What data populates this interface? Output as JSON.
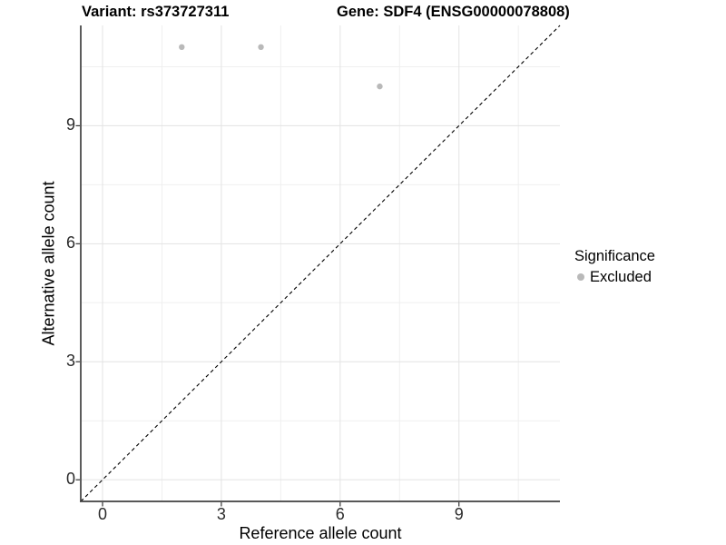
{
  "chart_data": {
    "type": "scatter",
    "title_left": "Variant: rs373727311",
    "title_right": "Gene: SDF4 (ENSG00000078808)",
    "xlabel": "Reference allele count",
    "ylabel": "Alternative allele count",
    "xlim": [
      -0.55,
      11.55
    ],
    "ylim": [
      -0.55,
      11.55
    ],
    "xticks": [
      0,
      3,
      6,
      9
    ],
    "yticks": [
      0,
      3,
      6,
      9
    ],
    "xminor": [
      1.5,
      4.5,
      7.5,
      10.5
    ],
    "yminor": [
      1.5,
      4.5,
      7.5,
      10.5
    ],
    "grid": "major+minor",
    "identity_line": {
      "style": "dashed",
      "from": [
        -0.55,
        -0.55
      ],
      "to": [
        11.55,
        11.55
      ],
      "color": "#000000"
    },
    "series": [
      {
        "name": "Excluded",
        "color": "#b9b9b9",
        "points": [
          [
            2,
            11
          ],
          [
            4,
            11
          ],
          [
            7,
            10
          ]
        ]
      }
    ],
    "legend": {
      "title": "Significance",
      "position": "right",
      "items": [
        {
          "label": "Excluded",
          "color": "#b9b9b9"
        }
      ]
    }
  },
  "colors": {
    "axis_line": "#404040",
    "tick_mark": "#333333",
    "grid_major": "#e3e3e3",
    "grid_minor": "#efefef"
  }
}
